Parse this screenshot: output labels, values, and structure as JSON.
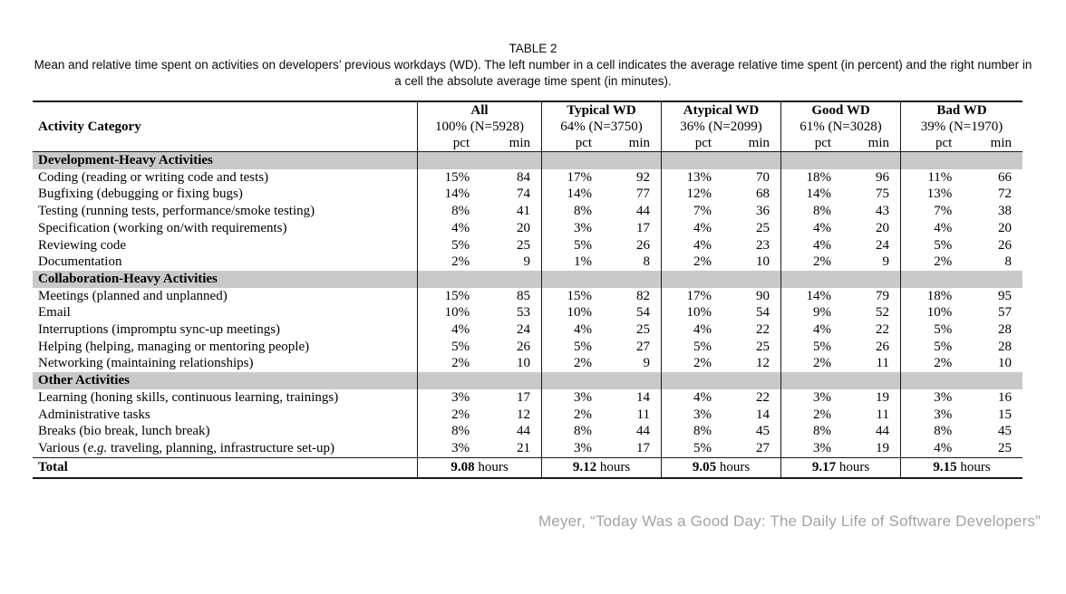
{
  "caption": {
    "label": "TABLE 2",
    "description": "Mean and relative time spent on activities on developers’ previous workdays (WD). The left number in a cell indicates the average relative time spent (in percent) and the right number in a cell the absolute average time spent (in minutes)."
  },
  "table": {
    "category_header": "Activity Category",
    "subcols": {
      "pct": "pct",
      "min": "min"
    },
    "groups": [
      {
        "name": "All",
        "subtitle": "100% (N=5928)"
      },
      {
        "name": "Typical WD",
        "subtitle": "64% (N=3750)"
      },
      {
        "name": "Atypical WD",
        "subtitle": "36% (N=2099)"
      },
      {
        "name": "Good WD",
        "subtitle": "61% (N=3028)"
      },
      {
        "name": "Bad WD",
        "subtitle": "39% (N=1970)"
      }
    ],
    "sections": [
      {
        "title": "Development-Heavy Activities",
        "rows": [
          {
            "label": "Coding (reading or writing code and tests)",
            "values": [
              "15%",
              "84",
              "17%",
              "92",
              "13%",
              "70",
              "18%",
              "96",
              "11%",
              "66"
            ]
          },
          {
            "label": "Bugfixing (debugging or fixing bugs)",
            "values": [
              "14%",
              "74",
              "14%",
              "77",
              "12%",
              "68",
              "14%",
              "75",
              "13%",
              "72"
            ]
          },
          {
            "label": "Testing (running tests, performance/smoke testing)",
            "values": [
              "8%",
              "41",
              "8%",
              "44",
              "7%",
              "36",
              "8%",
              "43",
              "7%",
              "38"
            ]
          },
          {
            "label": "Specification (working on/with requirements)",
            "values": [
              "4%",
              "20",
              "3%",
              "17",
              "4%",
              "25",
              "4%",
              "20",
              "4%",
              "20"
            ]
          },
          {
            "label": "Reviewing code",
            "values": [
              "5%",
              "25",
              "5%",
              "26",
              "4%",
              "23",
              "4%",
              "24",
              "5%",
              "26"
            ]
          },
          {
            "label": "Documentation",
            "values": [
              "2%",
              "9",
              "1%",
              "8",
              "2%",
              "10",
              "2%",
              "9",
              "2%",
              "8"
            ]
          }
        ]
      },
      {
        "title": "Collaboration-Heavy Activities",
        "rows": [
          {
            "label": "Meetings (planned and unplanned)",
            "values": [
              "15%",
              "85",
              "15%",
              "82",
              "17%",
              "90",
              "14%",
              "79",
              "18%",
              "95"
            ]
          },
          {
            "label": "Email",
            "values": [
              "10%",
              "53",
              "10%",
              "54",
              "10%",
              "54",
              "9%",
              "52",
              "10%",
              "57"
            ]
          },
          {
            "label": "Interruptions (impromptu sync-up meetings)",
            "values": [
              "4%",
              "24",
              "4%",
              "25",
              "4%",
              "22",
              "4%",
              "22",
              "5%",
              "28"
            ]
          },
          {
            "label": "Helping (helping, managing or mentoring people)",
            "values": [
              "5%",
              "26",
              "5%",
              "27",
              "5%",
              "25",
              "5%",
              "26",
              "5%",
              "28"
            ]
          },
          {
            "label": "Networking (maintaining relationships)",
            "values": [
              "2%",
              "10",
              "2%",
              "9",
              "2%",
              "12",
              "2%",
              "11",
              "2%",
              "10"
            ]
          }
        ]
      },
      {
        "title": "Other Activities",
        "rows": [
          {
            "label": "Learning (honing skills, continuous learning, trainings)",
            "values": [
              "3%",
              "17",
              "3%",
              "14",
              "4%",
              "22",
              "3%",
              "19",
              "3%",
              "16"
            ]
          },
          {
            "label": "Administrative tasks",
            "values": [
              "2%",
              "12",
              "2%",
              "11",
              "3%",
              "14",
              "2%",
              "11",
              "3%",
              "15"
            ]
          },
          {
            "label": "Breaks (bio break, lunch break)",
            "values": [
              "8%",
              "44",
              "8%",
              "44",
              "8%",
              "45",
              "8%",
              "44",
              "8%",
              "45"
            ]
          },
          {
            "label_parts": [
              "Various (",
              "e.g.",
              " traveling, planning, infrastructure set-up)"
            ],
            "values": [
              "3%",
              "21",
              "3%",
              "17",
              "5%",
              "27",
              "3%",
              "19",
              "4%",
              "25"
            ]
          }
        ]
      }
    ],
    "total": {
      "label": "Total",
      "unit": "hours",
      "values": [
        "9.08",
        "9.12",
        "9.05",
        "9.17",
        "9.15"
      ]
    }
  },
  "attribution": "Meyer, “Today Was a Good Day: The Daily Life of Software Developers”"
}
